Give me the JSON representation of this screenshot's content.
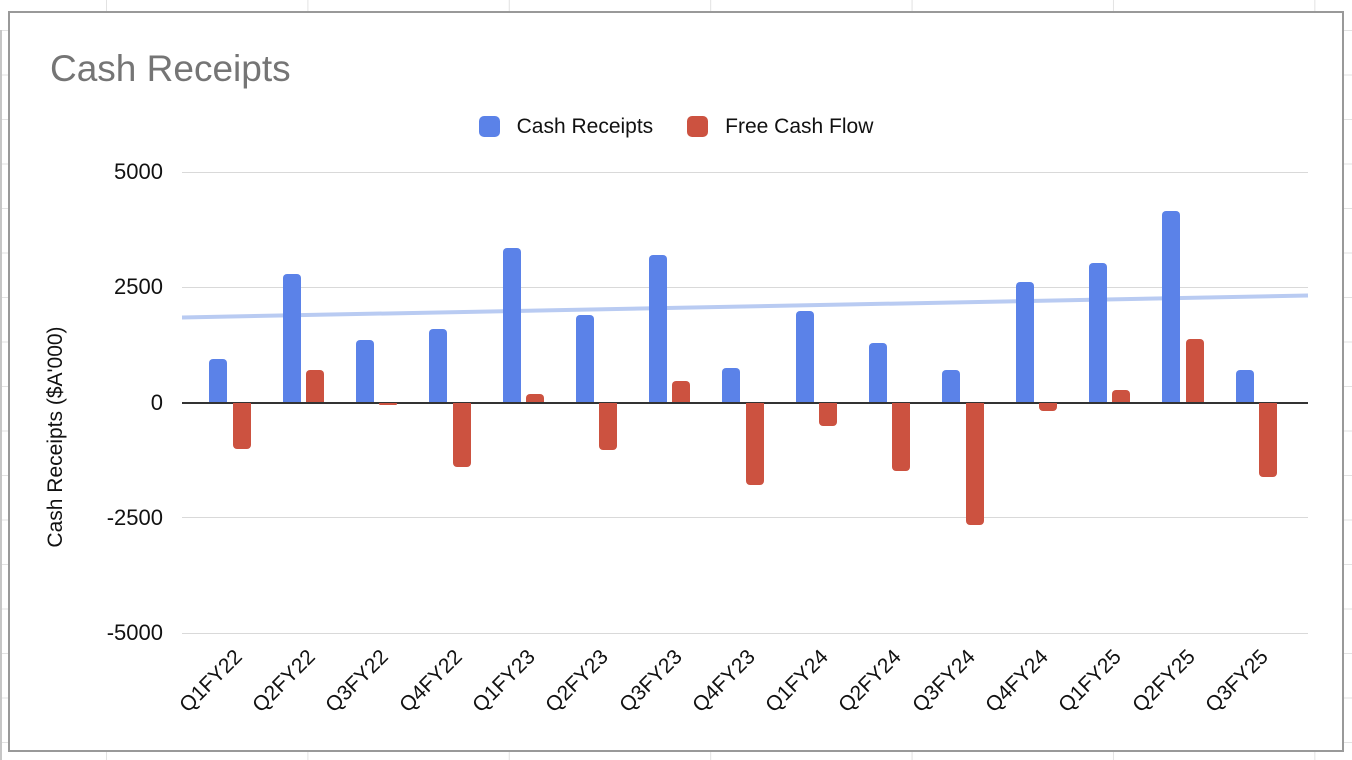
{
  "chart_data": {
    "type": "bar",
    "title": "Cash Receipts",
    "xlabel": "",
    "ylabel": "Cash Receipts ($A'000)",
    "ylim": [
      -5000,
      5000
    ],
    "y_ticks": [
      5000,
      2500,
      0,
      -2500,
      -5000
    ],
    "grid": true,
    "legend_position": "top",
    "categories": [
      "Q1FY22",
      "Q2FY22",
      "Q3FY22",
      "Q4FY22",
      "Q1FY23",
      "Q2FY23",
      "Q3FY23",
      "Q4FY23",
      "Q1FY24",
      "Q2FY24",
      "Q3FY24",
      "Q4FY24",
      "Q1FY25",
      "Q2FY25",
      "Q3FY25"
    ],
    "series": [
      {
        "name": "Cash Receipts",
        "color": "#5B82E8",
        "values": [
          940,
          2780,
          1350,
          1600,
          3350,
          1900,
          3200,
          740,
          1990,
          1300,
          710,
          2610,
          3020,
          4160,
          710
        ]
      },
      {
        "name": "Free Cash Flow",
        "color": "#CC5240",
        "values": [
          -1010,
          710,
          -50,
          -1390,
          180,
          -1020,
          470,
          -1790,
          -520,
          -1480,
          -2660,
          -180,
          270,
          1380,
          -1620
        ]
      }
    ],
    "trendline": {
      "series": "Cash Receipts",
      "color": "#B9CBF2",
      "start_value": 1845,
      "end_value": 2320
    },
    "colors": {
      "grid_line": "#d9d9d9",
      "zero_line": "#333333",
      "title_text": "#757575",
      "axis_text": "#111111",
      "chart_border": "#999999",
      "sheet_gridline": "#e2e2e2"
    }
  }
}
